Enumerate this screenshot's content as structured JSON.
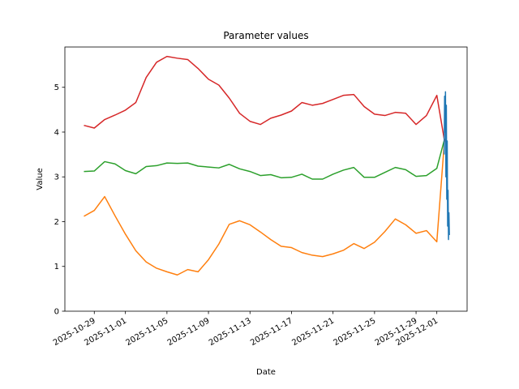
{
  "chart_data": {
    "type": "line",
    "title": "Parameter values",
    "xlabel": "Date",
    "ylabel": "Value",
    "x": [
      "2025-10-28",
      "2025-10-29",
      "2025-10-30",
      "2025-10-31",
      "2025-11-01",
      "2025-11-02",
      "2025-11-03",
      "2025-11-04",
      "2025-11-05",
      "2025-11-06",
      "2025-11-07",
      "2025-11-08",
      "2025-11-09",
      "2025-11-10",
      "2025-11-11",
      "2025-11-12",
      "2025-11-13",
      "2025-11-14",
      "2025-11-15",
      "2025-11-16",
      "2025-11-17",
      "2025-11-18",
      "2025-11-19",
      "2025-11-20",
      "2025-11-21",
      "2025-11-22",
      "2025-11-23",
      "2025-11-24",
      "2025-11-25",
      "2025-11-26",
      "2025-11-27",
      "2025-11-28",
      "2025-11-29",
      "2025-11-30",
      "2025-12-01",
      "2025-12-01T18:00"
    ],
    "series": [
      {
        "color": "#1f77b4",
        "x": [
          "2025-12-01T17:00",
          "2025-12-01T18:00",
          "2025-12-01T19:00",
          "2025-12-01T20:00",
          "2025-12-01T21:00",
          "2025-12-01T22:00",
          "2025-12-01T23:00",
          "2025-12-02T00:00",
          "2025-12-02T01:00",
          "2025-12-02T02:00",
          "2025-12-02T03:00",
          "2025-12-02T04:00",
          "2025-12-02T05:00"
        ],
        "values": [
          3.5,
          4.8,
          4.0,
          4.9,
          3.0,
          4.6,
          2.5,
          3.8,
          1.9,
          2.7,
          1.6,
          2.2,
          1.7
        ]
      },
      {
        "color": "#ff7f0e",
        "values": [
          2.12,
          2.25,
          2.56,
          2.13,
          1.72,
          1.35,
          1.1,
          0.96,
          0.88,
          0.81,
          0.93,
          0.88,
          1.15,
          1.5,
          1.94,
          2.02,
          1.93,
          1.77,
          1.6,
          1.45,
          1.42,
          1.31,
          1.25,
          1.22,
          1.28,
          1.36,
          1.51,
          1.4,
          1.54,
          1.78,
          2.06,
          1.93,
          1.74,
          1.8,
          1.55,
          3.85
        ]
      },
      {
        "color": "#2ca02c",
        "values": [
          3.12,
          3.13,
          3.34,
          3.29,
          3.14,
          3.07,
          3.23,
          3.25,
          3.31,
          3.3,
          3.31,
          3.24,
          3.22,
          3.2,
          3.28,
          3.18,
          3.12,
          3.03,
          3.05,
          2.98,
          2.99,
          3.06,
          2.95,
          2.95,
          3.06,
          3.15,
          3.21,
          2.99,
          2.99,
          3.1,
          3.21,
          3.16,
          3.01,
          3.03,
          3.19,
          3.85
        ]
      },
      {
        "color": "#d62728",
        "values": [
          4.15,
          4.09,
          4.28,
          4.38,
          4.49,
          4.66,
          5.22,
          5.56,
          5.69,
          5.65,
          5.62,
          5.42,
          5.18,
          5.05,
          4.76,
          4.42,
          4.24,
          4.17,
          4.31,
          4.38,
          4.47,
          4.66,
          4.6,
          4.64,
          4.73,
          4.82,
          4.84,
          4.57,
          4.4,
          4.37,
          4.44,
          4.42,
          4.17,
          4.37,
          4.82,
          3.79
        ]
      }
    ],
    "xlim": [
      "2025-10-26T04:00",
      "2025-12-03T22:00"
    ],
    "xticks": [
      "2025-10-29",
      "2025-11-01",
      "2025-11-05",
      "2025-11-09",
      "2025-11-13",
      "2025-11-17",
      "2025-11-21",
      "2025-11-25",
      "2025-11-29",
      "2025-12-01"
    ],
    "ylim": [
      0,
      5.9
    ],
    "yticks": [
      0,
      1,
      2,
      3,
      4,
      5
    ],
    "grid": false
  }
}
